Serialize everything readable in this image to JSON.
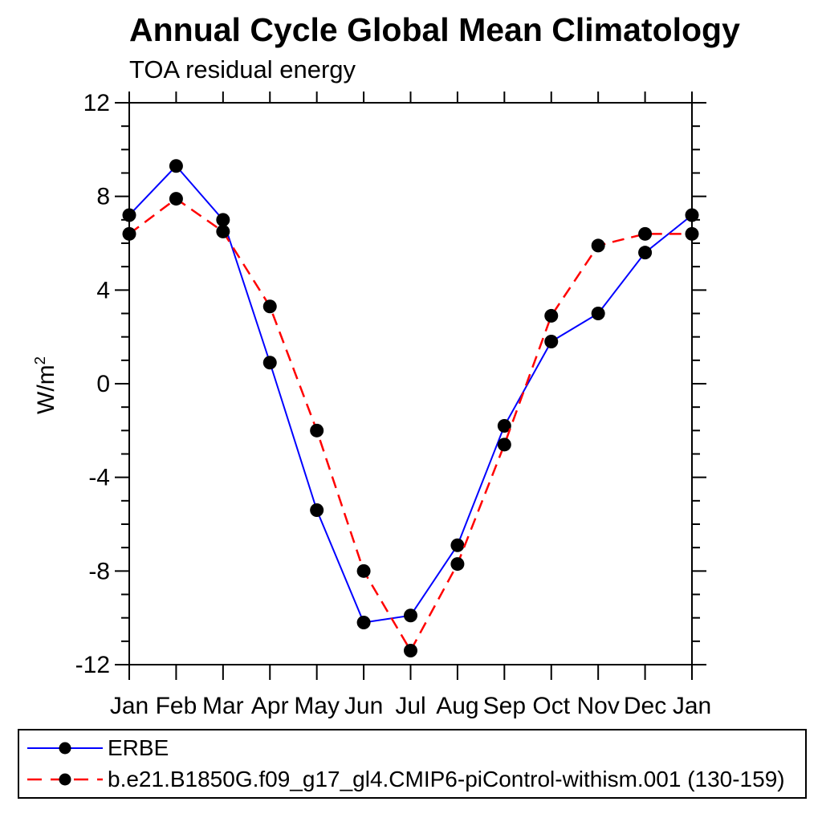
{
  "chart_data": {
    "type": "line",
    "title": "Annual Cycle Global Mean Climatology",
    "subtitle": "TOA residual energy",
    "ylabel_base": "W/m",
    "ylabel_sup": "2",
    "categories": [
      "Jan",
      "Feb",
      "Mar",
      "Apr",
      "May",
      "Jun",
      "Jul",
      "Aug",
      "Sep",
      "Oct",
      "Nov",
      "Dec",
      "Jan"
    ],
    "ylim": [
      -12,
      12
    ],
    "ytick_major": [
      12,
      8,
      4,
      0,
      -4,
      -8,
      -12
    ],
    "ytick_minor_step": 1,
    "grid": false,
    "legend_position": "bottom",
    "background": "#ffffff",
    "axis_color": "#000000",
    "text_color": "#000000",
    "marker_color": "#000000",
    "series": [
      {
        "name": "ERBE",
        "color": "#0000ff",
        "line_style": "solid",
        "marker": "circle",
        "marker_color": "#000000",
        "values": [
          7.2,
          9.3,
          7.0,
          0.9,
          -5.4,
          -10.2,
          -9.9,
          -6.9,
          -1.8,
          1.8,
          3.0,
          5.6,
          7.2
        ]
      },
      {
        "name": "b.e21.B1850G.f09_g17_gl4.CMIP6-piControl-withism.001 (130-159)",
        "color": "#ff0000",
        "line_style": "dashed",
        "marker": "circle",
        "marker_color": "#000000",
        "values": [
          6.4,
          7.9,
          6.5,
          3.3,
          -2.0,
          -8.0,
          -11.4,
          -7.7,
          -2.6,
          2.9,
          5.9,
          6.4,
          6.4
        ]
      }
    ]
  }
}
